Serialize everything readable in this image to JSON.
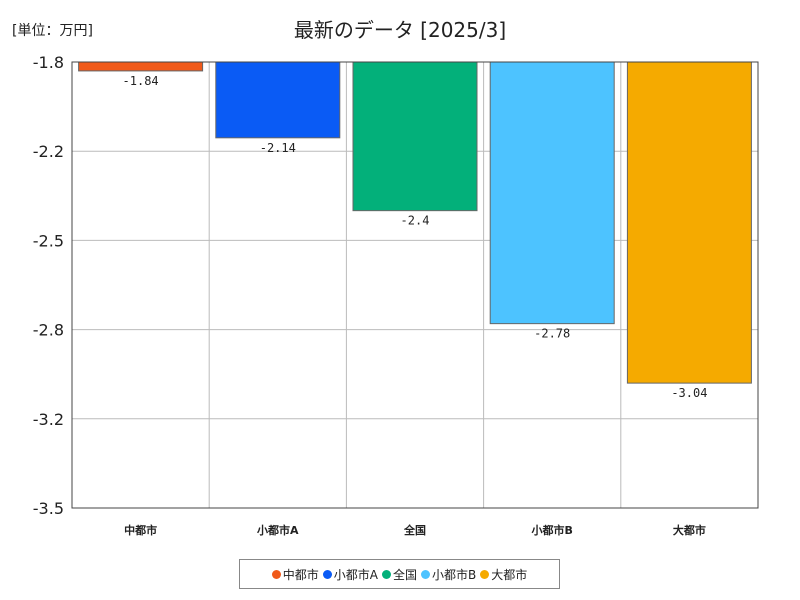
{
  "unit_label": "[単位：万円]",
  "chart_data": {
    "type": "bar",
    "title": "最新のデータ [2025/3]",
    "xlabel": "",
    "ylabel": "",
    "ylim": [
      -3.5,
      -1.8
    ],
    "yticks": [
      -1.8,
      -2.2,
      -2.5,
      -2.8,
      -3.2,
      -3.5
    ],
    "ytick_labels": [
      "-1.8",
      "-2.2",
      "-2.5",
      "-2.8",
      "-3.2",
      "-3.5"
    ],
    "categories": [
      "中都市",
      "小都市A",
      "全国",
      "小都市B",
      "大都市"
    ],
    "values": [
      -1.84,
      -2.14,
      -2.4,
      -2.78,
      -3.04
    ],
    "value_labels": [
      "-1.84",
      "-2.14",
      "-2.4",
      "-2.78",
      "-3.04"
    ],
    "colors": [
      "#f05a1a",
      "#0a5bf5",
      "#03b07a",
      "#4dc3ff",
      "#f5aa00"
    ],
    "grid": true,
    "legend_position": "bottom"
  }
}
